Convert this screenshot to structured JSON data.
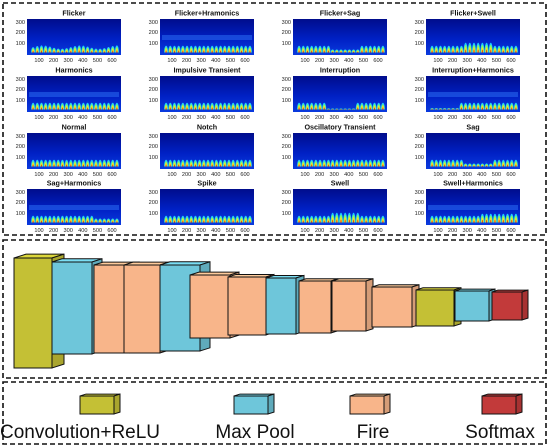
{
  "spectrogram_panels": [
    {
      "title": "Flicker",
      "variant": "flicker"
    },
    {
      "title": "Flicker+Hramonics",
      "variant": "harmonic"
    },
    {
      "title": "Flicker+Sag",
      "variant": "sag"
    },
    {
      "title": "Flicker+Swell",
      "variant": "swell"
    },
    {
      "title": "Harmonics",
      "variant": "harmonic"
    },
    {
      "title": "Impulsive Transient",
      "variant": "normal"
    },
    {
      "title": "Interruption",
      "variant": "interruption"
    },
    {
      "title": "Interruption+Harmonics",
      "variant": "intharm"
    },
    {
      "title": "Normal",
      "variant": "normal"
    },
    {
      "title": "Notch",
      "variant": "notch"
    },
    {
      "title": "Oscillatory Transient",
      "variant": "normal"
    },
    {
      "title": "Sag",
      "variant": "sag"
    },
    {
      "title": "Sag+Harmonics",
      "variant": "sagharm"
    },
    {
      "title": "Spike",
      "variant": "normal"
    },
    {
      "title": "Swell",
      "variant": "swell"
    },
    {
      "title": "Swell+Harmonics",
      "variant": "swellharm"
    }
  ],
  "x_ticks": [
    "100",
    "200",
    "300",
    "400",
    "500",
    "600"
  ],
  "y_ticks": [
    "300",
    "200",
    "100"
  ],
  "cnn_layers": [
    "conv",
    "pool",
    "fire",
    "fire",
    "pool",
    "fire",
    "fire",
    "pool",
    "fire",
    "fire",
    "conv",
    "pool",
    "softmax"
  ],
  "legend": [
    {
      "type": "conv",
      "label": "Convolution+ReLU"
    },
    {
      "type": "pool",
      "label": "Max Pool"
    },
    {
      "type": "fire",
      "label": "Fire"
    },
    {
      "type": "softmax",
      "label": "Softmax"
    }
  ],
  "colors": {
    "conv": "#c4c035",
    "pool": "#6ec6da",
    "fire": "#f8b58a",
    "softmax": "#c23a3a",
    "spectrogram_background": "#0018b0"
  }
}
